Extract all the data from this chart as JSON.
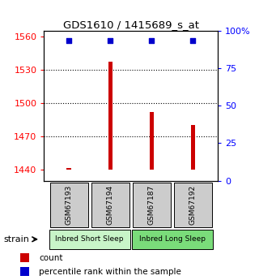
{
  "title": "GDS1610 / 1415689_s_at",
  "samples": [
    "GSM67193",
    "GSM67194",
    "GSM67187",
    "GSM67192"
  ],
  "counts": [
    1441,
    1537,
    1492,
    1480
  ],
  "percentiles": [
    97,
    97,
    97,
    97
  ],
  "group_labels": [
    "Inbred Short Sleep",
    "Inbred Long Sleep"
  ],
  "group_colors": [
    "#c8f5c8",
    "#7adc7a"
  ],
  "ylim_left": [
    1430,
    1565
  ],
  "yticks_left": [
    1440,
    1470,
    1500,
    1530,
    1560
  ],
  "yticks_right": [
    0,
    25,
    50,
    75,
    100
  ],
  "bar_color": "#cc0000",
  "dot_color": "#0000cc",
  "bar_base": 1440,
  "sample_box_color": "#cccccc",
  "legend_count_color": "#cc0000",
  "legend_pct_color": "#0000cc",
  "gridline_y": [
    1470,
    1500,
    1530
  ]
}
